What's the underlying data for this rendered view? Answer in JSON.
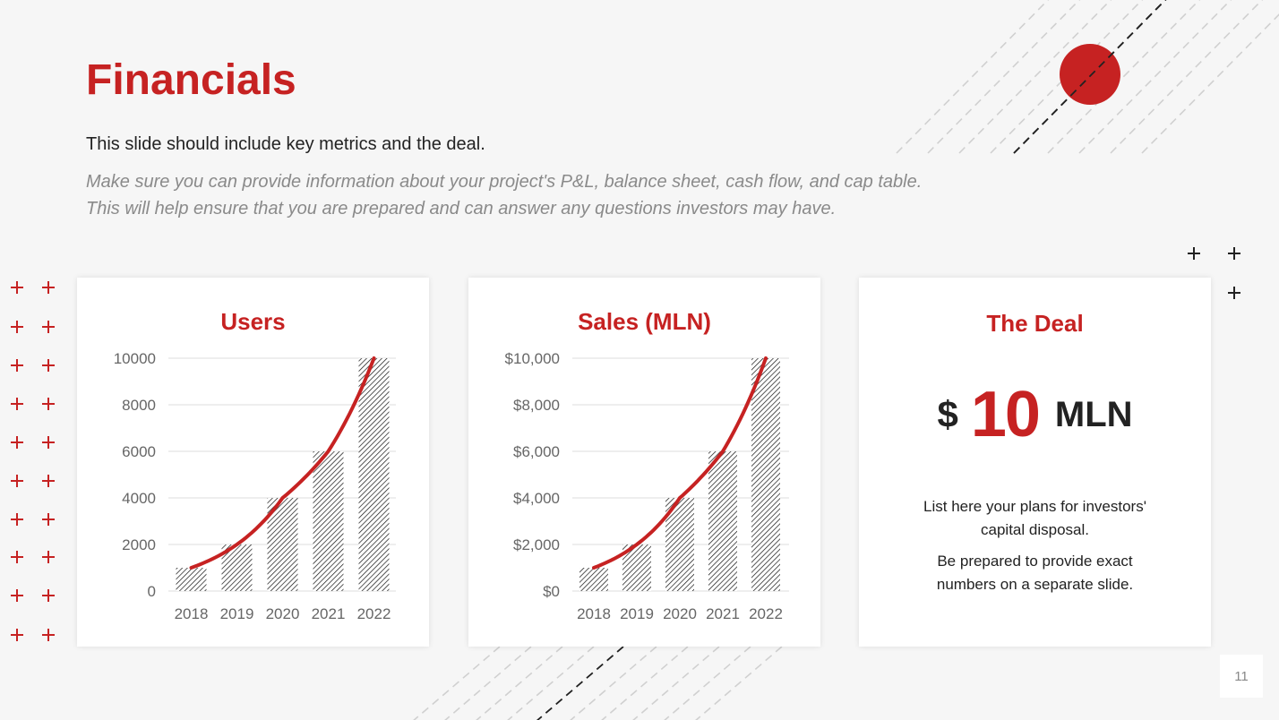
{
  "slide": {
    "title": "Financials",
    "lead": "This slide should include key metrics and the deal.",
    "note": "Make sure you can provide information about your project's P&L, balance sheet, cash flow, and cap table. This will help ensure that you are prepared and can answer any questions investors may have.",
    "page_number": "11"
  },
  "colors": {
    "accent": "#c62222",
    "text": "#222222",
    "muted": "#8a8a8a",
    "background": "#f6f6f6"
  },
  "deal": {
    "title": "The Deal",
    "currency": "$",
    "amount": "10",
    "unit": "MLN",
    "text1": "List here your plans for investors' capital disposal.",
    "text2": "Be prepared to provide exact numbers on a separate slide."
  },
  "chart_data": [
    {
      "type": "bar",
      "title": "Users",
      "categories": [
        "2018",
        "2019",
        "2020",
        "2021",
        "2022"
      ],
      "values": [
        1000,
        2000,
        4000,
        6000,
        10000
      ],
      "ylim": [
        0,
        10000
      ],
      "yticks": [
        "0",
        "2000",
        "4000",
        "6000",
        "8000",
        "10000"
      ],
      "trendline": "exponential",
      "grid": true
    },
    {
      "type": "bar",
      "title": "Sales (MLN)",
      "categories": [
        "2018",
        "2019",
        "2020",
        "2021",
        "2022"
      ],
      "values": [
        1000,
        2000,
        4000,
        6000,
        10000
      ],
      "ylim": [
        0,
        10000
      ],
      "yticks": [
        "$0",
        "$2,000",
        "$4,000",
        "$6,000",
        "$8,000",
        "$10,000"
      ],
      "trendline": "exponential",
      "grid": true
    }
  ]
}
